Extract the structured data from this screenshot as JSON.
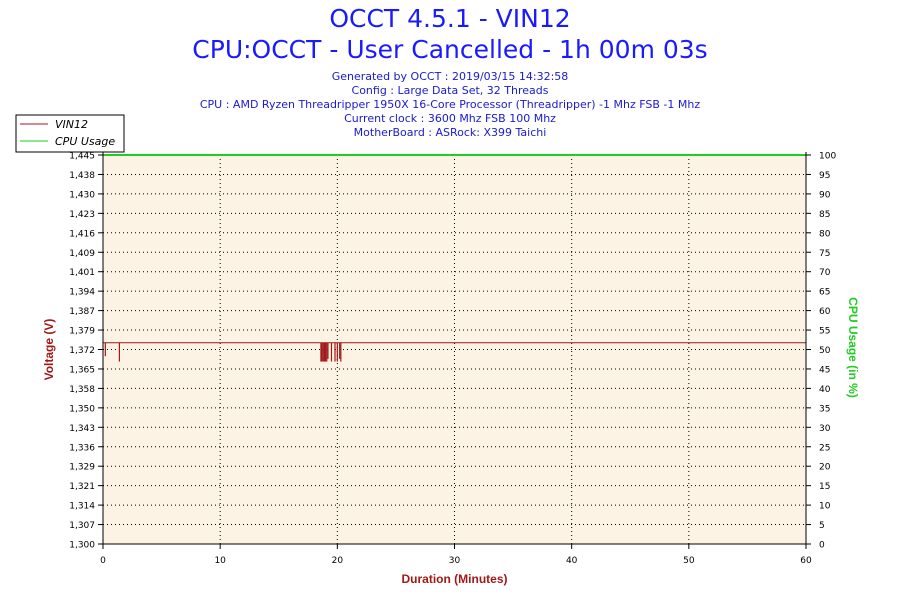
{
  "header": {
    "title": "OCCT 4.5.1 - VIN12",
    "subtitle": "CPU:OCCT - User Cancelled - 1h 00m 03s",
    "info": [
      "Generated by OCCT : 2019/03/15 14:32:58",
      "Config : Large Data Set, 32 Threads",
      "CPU : AMD Ryzen Threadripper 1950X 16-Core Processor (Threadripper) -1 Mhz FSB -1 Mhz",
      "Current clock : 3600 Mhz FSB 100 Mhz",
      "MotherBoard : ASRock: X399 Taichi"
    ]
  },
  "colors": {
    "voltage": "#a01818",
    "cpu": "#22cc22",
    "plot_bg": "#fdf3e4",
    "title": "#1a1aff"
  },
  "chart_data": {
    "type": "line",
    "xlabel": "Duration (Minutes)",
    "ylabel": "Voltage (V)",
    "y2label": "CPU Usage (in %)",
    "xlim": [
      0,
      60
    ],
    "ylim": [
      1.3,
      1.445
    ],
    "y2lim": [
      0,
      100
    ],
    "x_ticks": [
      0,
      10,
      20,
      30,
      40,
      50,
      60
    ],
    "y_ticks": [
      "1,300",
      "1,307",
      "1,314",
      "1,321",
      "1,329",
      "1,336",
      "1,343",
      "1,350",
      "1,358",
      "1,365",
      "1,372",
      "1,379",
      "1,387",
      "1,394",
      "1,401",
      "1,409",
      "1,416",
      "1,423",
      "1,430",
      "1,438",
      "1,445"
    ],
    "y2_ticks": [
      0,
      5,
      10,
      15,
      20,
      25,
      30,
      35,
      40,
      45,
      50,
      55,
      60,
      65,
      70,
      75,
      80,
      85,
      90,
      95,
      100
    ],
    "grid": true,
    "legend": {
      "position": "top-left",
      "entries": [
        "VIN12",
        "CPU Usage"
      ]
    },
    "series": [
      {
        "name": "VIN12",
        "axis": "left",
        "baseline": 1.375,
        "x": [
          0,
          0.3,
          1.4,
          18.6,
          18.8,
          19.1,
          19.3,
          19.5,
          19.7,
          19.9,
          20.1,
          20.3,
          60
        ],
        "y": [
          1.375,
          1.368,
          1.368,
          1.368,
          1.368,
          1.368,
          1.368,
          1.368,
          1.368,
          1.368,
          1.368,
          1.368,
          1.375
        ],
        "dips": [
          {
            "x": 0.2,
            "y": 1.37
          },
          {
            "x": 1.4,
            "y": 1.368
          },
          {
            "x": 18.6,
            "y": 1.368
          },
          {
            "x": 18.7,
            "y": 1.368
          },
          {
            "x": 18.8,
            "y": 1.368
          },
          {
            "x": 18.9,
            "y": 1.368
          },
          {
            "x": 19.0,
            "y": 1.368
          },
          {
            "x": 19.1,
            "y": 1.368
          },
          {
            "x": 19.2,
            "y": 1.369
          },
          {
            "x": 19.5,
            "y": 1.368
          },
          {
            "x": 19.8,
            "y": 1.368
          },
          {
            "x": 20.0,
            "y": 1.368
          },
          {
            "x": 20.2,
            "y": 1.369
          },
          {
            "x": 20.3,
            "y": 1.368
          }
        ]
      },
      {
        "name": "CPU Usage",
        "axis": "right",
        "x": [
          0,
          60
        ],
        "y": [
          100,
          100
        ]
      }
    ]
  }
}
